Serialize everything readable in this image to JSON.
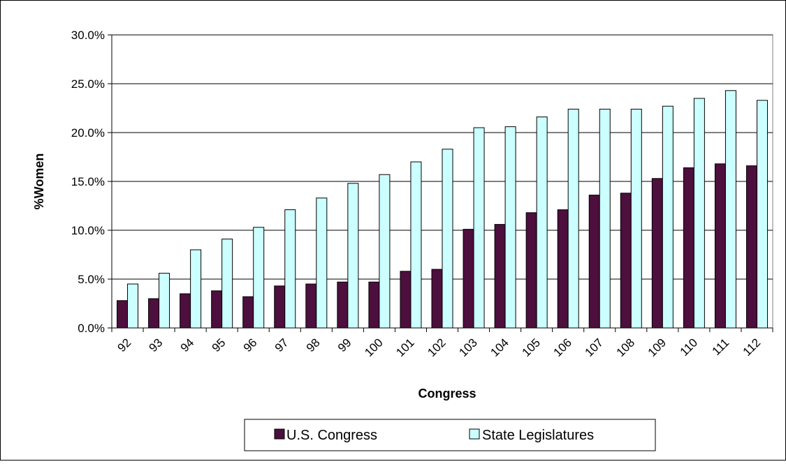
{
  "chart_data": {
    "type": "bar",
    "title": "",
    "xlabel": "Congress",
    "ylabel": "%Women",
    "ylim": [
      0,
      0.3
    ],
    "yticks": [
      0.0,
      0.05,
      0.1,
      0.15,
      0.2,
      0.25,
      0.3
    ],
    "ytick_labels": [
      "0.0%",
      "5.0%",
      "10.0%",
      "15.0%",
      "20.0%",
      "25.0%",
      "30.0%"
    ],
    "grid": "horizontal",
    "legend_position": "bottom",
    "categories": [
      "92",
      "93",
      "94",
      "95",
      "96",
      "97",
      "98",
      "99",
      "100",
      "101",
      "102",
      "103",
      "104",
      "105",
      "106",
      "107",
      "108",
      "109",
      "110",
      "111",
      "112"
    ],
    "series": [
      {
        "name": "U.S. Congress",
        "color": "#4d0f3d",
        "values": [
          0.028,
          0.03,
          0.035,
          0.038,
          0.032,
          0.043,
          0.045,
          0.047,
          0.047,
          0.058,
          0.06,
          0.101,
          0.106,
          0.118,
          0.121,
          0.136,
          0.138,
          0.153,
          0.164,
          0.168,
          0.166
        ]
      },
      {
        "name": "State Legislatures",
        "color": "#ccffff",
        "values": [
          0.045,
          0.056,
          0.08,
          0.091,
          0.103,
          0.121,
          0.133,
          0.148,
          0.157,
          0.17,
          0.183,
          0.205,
          0.206,
          0.216,
          0.224,
          0.224,
          0.224,
          0.227,
          0.235,
          0.243,
          0.233
        ]
      }
    ]
  }
}
